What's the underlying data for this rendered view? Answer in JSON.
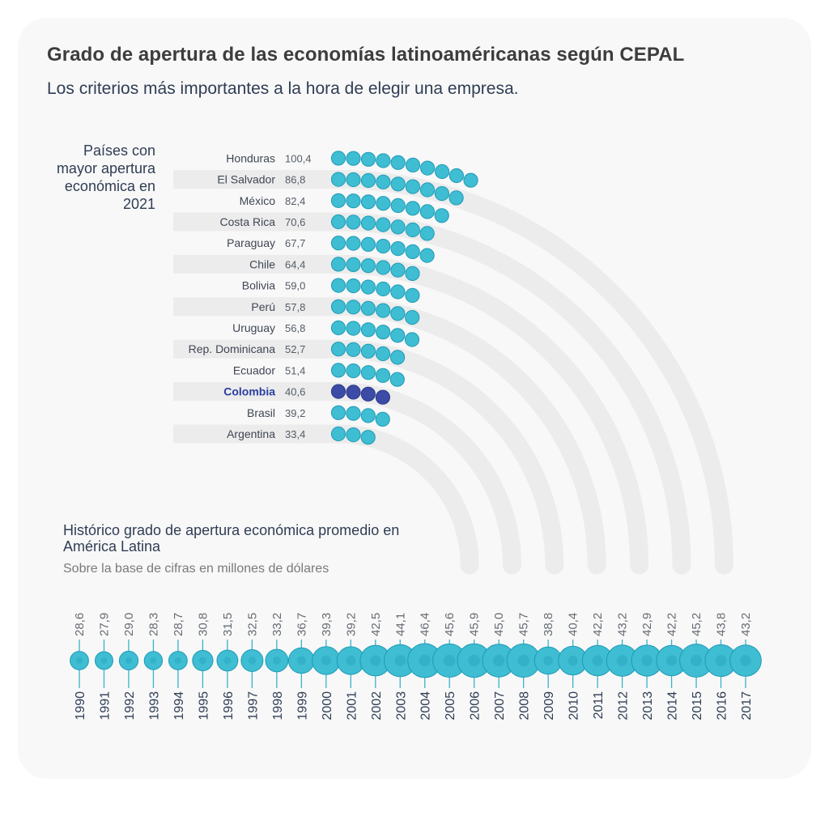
{
  "title": "Grado de apertura de las economías latinoaméricanas según CEPAL",
  "subtitle": "Los criterios más importantes a la hora de elegir una empresa.",
  "panel_label": "Países con mayor apertura económica en 2021",
  "historic": {
    "title": "Histórico grado de apertura económica promedio en América Latina",
    "subtitle": "Sobre la base de cifras en millones de dólares"
  },
  "colors": {
    "dot": "#3fbdd3",
    "dot_dark": "#1f9bb5",
    "highlight": "#3b4ba6",
    "track": "#ececec"
  },
  "chart_data": [
    {
      "type": "dot-arc",
      "title": "Países con mayor apertura económica en 2021",
      "highlight": "Colombia",
      "categories": [
        "Honduras",
        "El Salvador",
        "México",
        "Costa Rica",
        "Paraguay",
        "Chile",
        "Bolivia",
        "Perú",
        "Uruguay",
        "Rep. Dominicana",
        "Ecuador",
        "Colombia",
        "Brasil",
        "Argentina"
      ],
      "value_labels": [
        "100,4",
        "86,8",
        "82,4",
        "70,6",
        "67,7",
        "64,4",
        "59,0",
        "57,8",
        "56,8",
        "52,7",
        "51,4",
        "40,6",
        "39,2",
        "33,4"
      ],
      "values": [
        100.4,
        86.8,
        82.4,
        70.6,
        67.7,
        64.4,
        59.0,
        57.8,
        56.8,
        52.7,
        51.4,
        40.6,
        39.2,
        33.4
      ]
    },
    {
      "type": "bubble-timeline",
      "title": "Histórico grado de apertura económica promedio en América Latina",
      "subtitle": "Sobre la base de cifras en millones de dólares",
      "x": [
        "1990",
        "1991",
        "1992",
        "1993",
        "1994",
        "1995",
        "1996",
        "1997",
        "1998",
        "1999",
        "2000",
        "2001",
        "2002",
        "2003",
        "2004",
        "2005",
        "2006",
        "2007",
        "2008",
        "2009",
        "2010",
        "2011",
        "2012",
        "2013",
        "2014",
        "2015",
        "2016",
        "2017"
      ],
      "value_labels": [
        "28,6",
        "27,9",
        "29,0",
        "28,3",
        "28,7",
        "30,8",
        "31,5",
        "32,5",
        "33,2",
        "36,7",
        "39,3",
        "39,2",
        "42,5",
        "44,1",
        "46,4",
        "45,6",
        "45,9",
        "45,0",
        "45,7",
        "38,8",
        "40,4",
        "42,2",
        "43,2",
        "42,9",
        "42,2",
        "45,2",
        "43,8",
        "43,2"
      ],
      "values": [
        28.6,
        27.9,
        29.0,
        28.3,
        28.7,
        30.8,
        31.5,
        32.5,
        33.2,
        36.7,
        39.3,
        39.2,
        42.5,
        44.1,
        46.4,
        45.6,
        45.9,
        45.0,
        45.7,
        38.8,
        40.4,
        42.2,
        43.2,
        42.9,
        42.2,
        45.2,
        43.8,
        43.2
      ]
    }
  ]
}
